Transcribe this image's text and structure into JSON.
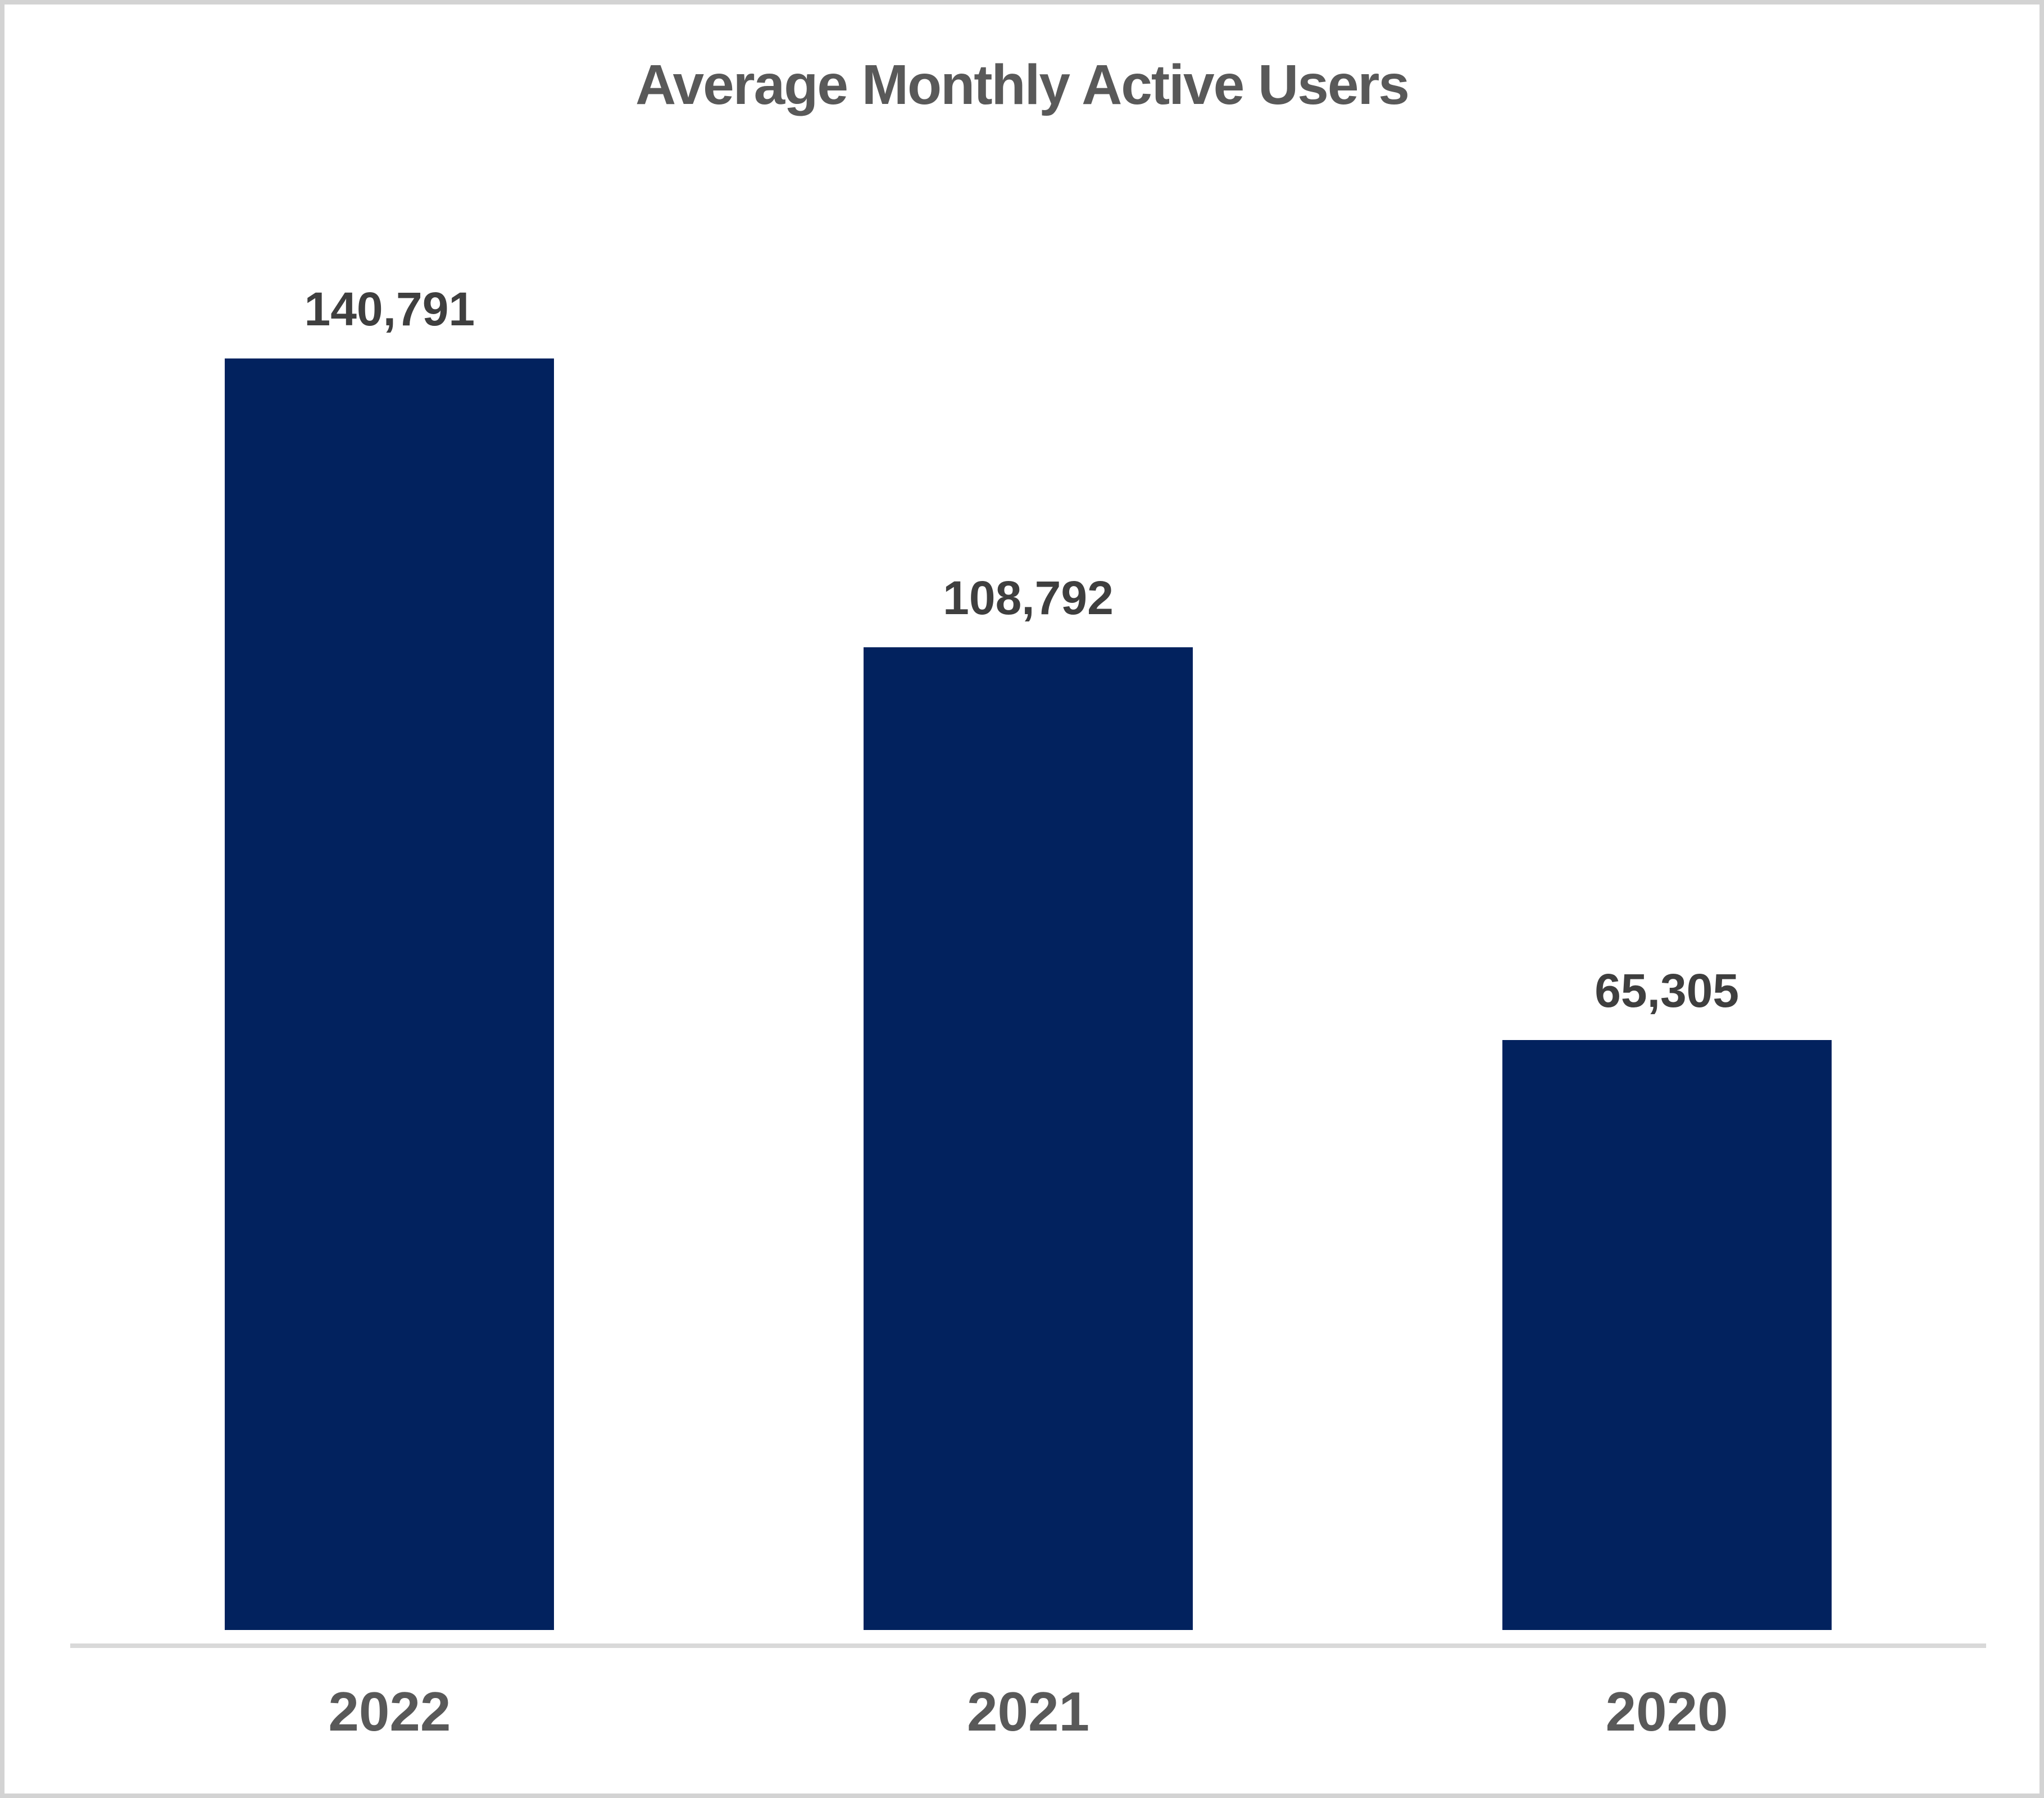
{
  "chart_data": {
    "type": "bar",
    "title": "Average Monthly Active Users",
    "categories": [
      "2022",
      "2021",
      "2020"
    ],
    "values": [
      140791,
      108792,
      65305
    ],
    "value_labels": [
      "140,791",
      "108,792",
      "65,305"
    ],
    "colors": {
      "bar": "#02225E",
      "title": "#595959",
      "data_label": "#3F3F3F",
      "category_label": "#595959",
      "axis_line": "#D9D9D9",
      "frame_border": "#D3D3D3",
      "background": "#FFFFFF"
    },
    "layout": {
      "grid": false,
      "legend": false,
      "y_axis_visible": false,
      "data_label_position": "above-bar",
      "x_axis_line_visible": true
    }
  }
}
